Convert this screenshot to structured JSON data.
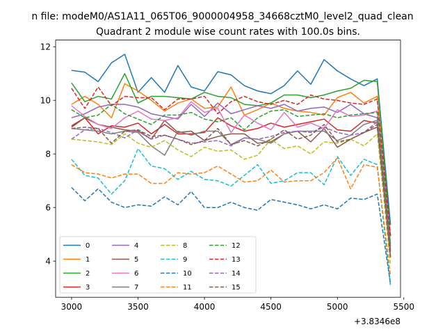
{
  "chart_data": {
    "type": "line",
    "suptitle": "n file: modeM0/AS1A11_065T06_9000004958_34668cztM0_level2_quad_clean",
    "title": "Quadrant 2 module wise count rates with 100.0s bins.",
    "xlabel": "",
    "ylabel": "",
    "x_offset_label": "+3.8346e8",
    "xlim": [
      2880,
      5475
    ],
    "ylim": [
      2.65,
      12.25
    ],
    "x_ticks": [
      3000,
      3500,
      4000,
      4500,
      5000,
      5500
    ],
    "y_ticks": [
      4,
      6,
      8,
      10,
      12
    ],
    "x": [
      3000,
      3100,
      3200,
      3300,
      3400,
      3500,
      3600,
      3700,
      3800,
      3900,
      4000,
      4100,
      4200,
      4300,
      4400,
      4500,
      4600,
      4700,
      4800,
      4900,
      5000,
      5100,
      5200,
      5300,
      5400
    ],
    "legend_location": "lower-left",
    "series": [
      {
        "name": "0",
        "color": "#1f77b4",
        "dash": "solid",
        "values": [
          11.12,
          11.05,
          10.7,
          11.4,
          11.72,
          10.3,
          10.85,
          10.3,
          11.3,
          10.5,
          10.35,
          11.07,
          10.95,
          10.55,
          10.35,
          10.25,
          10.55,
          11.1,
          10.6,
          11.52,
          11.1,
          10.8,
          10.55,
          10.8,
          5.35
        ]
      },
      {
        "name": "1",
        "color": "#ff7f0e",
        "dash": "solid",
        "values": [
          9.85,
          10.15,
          9.85,
          9.35,
          10.62,
          10.35,
          10.0,
          9.6,
          9.9,
          10.05,
          9.7,
          9.75,
          10.5,
          9.45,
          9.65,
          9.9,
          9.7,
          9.6,
          9.55,
          9.45,
          10.1,
          10.3,
          9.9,
          10.15,
          4.4
        ]
      },
      {
        "name": "2",
        "color": "#2ca02c",
        "dash": "solid",
        "values": [
          10.65,
          9.95,
          10.15,
          10.05,
          11.0,
          9.9,
          10.15,
          10.15,
          10.1,
          10.05,
          10.3,
          10.15,
          10.1,
          9.85,
          9.8,
          9.9,
          10.2,
          10.2,
          10.1,
          10.2,
          10.35,
          10.45,
          10.75,
          10.7,
          4.95
        ]
      },
      {
        "name": "3",
        "color": "#d62728",
        "dash": "solid",
        "values": [
          9.05,
          9.35,
          8.75,
          9.05,
          9.0,
          9.15,
          8.75,
          9.1,
          8.75,
          8.75,
          8.8,
          9.35,
          9.05,
          8.85,
          8.95,
          9.15,
          9.0,
          9.1,
          9.2,
          9.3,
          8.9,
          8.85,
          9.25,
          9.15,
          4.15
        ]
      },
      {
        "name": "4",
        "color": "#9467bd",
        "dash": "solid",
        "values": [
          9.35,
          9.5,
          9.75,
          9.85,
          9.85,
          9.75,
          9.5,
          9.4,
          9.3,
          9.85,
          9.4,
          9.9,
          9.5,
          9.65,
          9.8,
          9.7,
          9.85,
          9.6,
          9.7,
          9.75,
          9.55,
          9.85,
          9.5,
          9.35,
          4.65
        ]
      },
      {
        "name": "5",
        "color": "#8c564b",
        "dash": "solid",
        "values": [
          9.0,
          9.35,
          9.1,
          9.0,
          8.9,
          8.85,
          8.55,
          9.25,
          8.8,
          8.85,
          8.5,
          8.65,
          8.75,
          8.75,
          8.4,
          8.45,
          8.75,
          8.85,
          8.45,
          8.95,
          8.25,
          8.55,
          8.8,
          9.0,
          4.35
        ]
      },
      {
        "name": "6",
        "color": "#e377c2",
        "dash": "solid",
        "values": [
          9.8,
          9.4,
          9.1,
          8.95,
          9.35,
          9.6,
          9.3,
          9.25,
          9.35,
          9.95,
          9.55,
          9.7,
          8.8,
          9.45,
          9.15,
          8.9,
          9.55,
          9.0,
          9.15,
          8.95,
          9.65,
          9.4,
          9.45,
          9.6,
          4.95
        ]
      },
      {
        "name": "7",
        "color": "#7f7f7f",
        "dash": "solid",
        "values": [
          8.95,
          8.9,
          8.85,
          8.75,
          8.85,
          8.8,
          8.3,
          7.95,
          8.85,
          8.7,
          8.85,
          8.85,
          8.35,
          8.6,
          8.55,
          8.4,
          8.75,
          8.85,
          8.85,
          8.85,
          8.5,
          8.7,
          9.1,
          9.25,
          4.55
        ]
      },
      {
        "name": "8",
        "color": "#bcbd22",
        "dash": "dashed",
        "values": [
          8.55,
          8.5,
          8.45,
          8.35,
          8.75,
          8.4,
          8.25,
          8.5,
          8.15,
          7.9,
          8.25,
          8.1,
          8.15,
          7.8,
          7.95,
          8.55,
          8.2,
          8.3,
          8.0,
          8.45,
          8.4,
          8.55,
          8.3,
          8.75,
          3.85
        ]
      },
      {
        "name": "9",
        "color": "#17becf",
        "dash": "dashed",
        "values": [
          7.8,
          7.2,
          7.1,
          6.5,
          7.0,
          8.2,
          7.55,
          7.45,
          7.05,
          7.35,
          7.05,
          7.0,
          6.8,
          7.2,
          7.6,
          6.9,
          7.0,
          7.3,
          7.3,
          6.85,
          7.9,
          7.2,
          7.8,
          7.6,
          3.05
        ]
      },
      {
        "name": "10",
        "color": "#1f77b4",
        "dash": "dashed",
        "values": [
          6.75,
          6.25,
          6.7,
          6.2,
          6.0,
          6.1,
          6.05,
          6.4,
          6.1,
          6.6,
          6.0,
          6.0,
          6.2,
          6.0,
          5.9,
          6.3,
          6.2,
          6.1,
          5.95,
          6.1,
          5.95,
          6.35,
          6.3,
          6.5,
          3.15
        ]
      },
      {
        "name": "11",
        "color": "#ff7f0e",
        "dash": "dashed",
        "values": [
          7.6,
          7.3,
          7.25,
          7.1,
          7.25,
          7.25,
          6.9,
          6.9,
          7.3,
          7.25,
          7.3,
          7.55,
          7.25,
          6.95,
          7.0,
          7.4,
          6.95,
          7.0,
          7.0,
          7.3,
          7.85,
          6.7,
          7.6,
          7.5,
          3.45
        ]
      },
      {
        "name": "12",
        "color": "#2ca02c",
        "dash": "dashed",
        "values": [
          9.65,
          9.35,
          9.45,
          9.85,
          9.5,
          9.3,
          9.1,
          9.45,
          9.45,
          9.55,
          9.3,
          9.2,
          9.35,
          8.9,
          9.35,
          9.6,
          9.65,
          9.4,
          9.45,
          9.5,
          9.35,
          9.45,
          9.5,
          9.55,
          4.5
        ]
      },
      {
        "name": "13",
        "color": "#d62728",
        "dash": "dashed",
        "values": [
          10.45,
          9.7,
          10.5,
          9.8,
          10.15,
          10.1,
          10.1,
          9.65,
          10.05,
          10.05,
          10.15,
          9.5,
          9.95,
          10.15,
          9.95,
          9.85,
          10.0,
          9.85,
          10.2,
          10.05,
          10.0,
          9.9,
          9.85,
          10.05,
          4.9
        ]
      },
      {
        "name": "14",
        "color": "#9467bd",
        "dash": "dashed",
        "values": [
          8.55,
          8.9,
          8.95,
          8.8,
          8.6,
          8.9,
          8.55,
          8.7,
          8.55,
          8.4,
          8.45,
          8.5,
          8.3,
          8.6,
          8.55,
          8.65,
          8.8,
          8.85,
          8.8,
          9.0,
          8.8,
          8.7,
          8.8,
          9.2,
          4.2
        ]
      },
      {
        "name": "15",
        "color": "#8c564b",
        "dash": "dashed",
        "values": [
          8.95,
          9.0,
          8.95,
          8.4,
          8.85,
          8.9,
          8.65,
          8.7,
          8.55,
          8.35,
          8.5,
          8.95,
          8.35,
          8.5,
          8.3,
          8.55,
          8.9,
          8.55,
          8.7,
          9.1,
          8.45,
          8.55,
          8.8,
          9.1,
          4.1
        ]
      }
    ]
  }
}
